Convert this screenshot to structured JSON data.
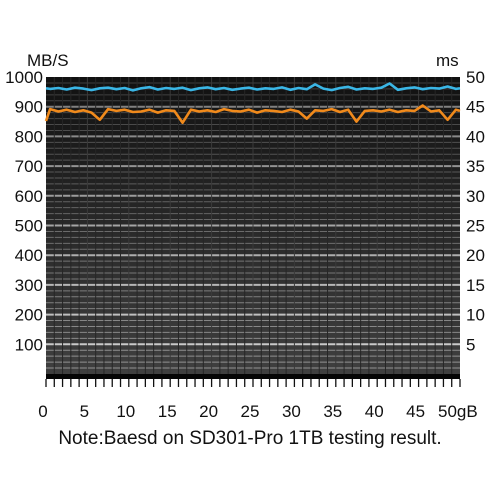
{
  "note": "Note:Baesd on SD301-Pro 1TB testing result.",
  "chart_data": {
    "type": "line",
    "left_unit": "MB/S",
    "right_unit": "ms",
    "x_ticks": [
      "0",
      "5",
      "10",
      "15",
      "20",
      "25",
      "30",
      "35",
      "40",
      "45",
      "50gB"
    ],
    "x_range": [
      0,
      50
    ],
    "y_left_ticks": [
      "100",
      "200",
      "300",
      "400",
      "500",
      "600",
      "700",
      "800",
      "900",
      "1000"
    ],
    "y_left_range": [
      0,
      1000
    ],
    "y_right_ticks": [
      "5",
      "10",
      "15",
      "20",
      "25",
      "30",
      "35",
      "40",
      "45",
      "50"
    ],
    "y_right_range": [
      0,
      50
    ],
    "grid": true,
    "background": "#1c1c1c",
    "series": [
      {
        "axis": "left",
        "color": "#3ab6e6",
        "baseline": 960,
        "x": [
          0,
          0.5,
          1.5,
          2.5,
          3.5,
          4.5,
          5.5,
          6.5,
          7.5,
          8.5,
          9.5,
          10.5,
          11.5,
          12.5,
          13.5,
          14.5,
          15.5,
          16.5,
          17.5,
          18.5,
          19.5,
          20.5,
          21.5,
          22.5,
          23.5,
          24.5,
          25.5,
          26.5,
          27.5,
          28.5,
          29.5,
          30.5,
          31.5,
          32.5,
          33.5,
          34.5,
          35.5,
          36.5,
          37.5,
          38.5,
          39.5,
          40.5,
          41.5,
          42.5,
          43.5,
          44.5,
          45.5,
          46.5,
          47.5,
          48.5,
          49.5,
          50
        ],
        "y": [
          962,
          960,
          963,
          958,
          964,
          961,
          956,
          962,
          964,
          959,
          963,
          955,
          962,
          966,
          958,
          963,
          960,
          964,
          956,
          962,
          965,
          959,
          963,
          957,
          961,
          964,
          958,
          962,
          960,
          965,
          957,
          963,
          959,
          975,
          961,
          956,
          963,
          967,
          958,
          962,
          960,
          964,
          978,
          957,
          962,
          965,
          959,
          963,
          961,
          968,
          960,
          962
        ]
      },
      {
        "axis": "right",
        "color": "#f08a1c",
        "baseline": 44.3,
        "x": [
          0,
          0.5,
          1.5,
          2.5,
          3.5,
          4.5,
          5.5,
          6.5,
          7.5,
          8.5,
          9.5,
          10.5,
          11.5,
          12.5,
          13.5,
          14.5,
          15.5,
          16.5,
          17.5,
          18.5,
          19.5,
          20.5,
          21.5,
          22.5,
          23.5,
          24.5,
          25.5,
          26.5,
          27.5,
          28.5,
          29.5,
          30.5,
          31.5,
          32.5,
          33.5,
          34.5,
          35.5,
          36.5,
          37.5,
          38.5,
          39.5,
          40.5,
          41.5,
          42.5,
          43.5,
          44.5,
          45.5,
          46.5,
          47.5,
          48.5,
          49.5,
          50
        ],
        "y": [
          42.6,
          44.6,
          44.2,
          44.5,
          44.1,
          44.4,
          44.0,
          42.8,
          44.6,
          44.3,
          44.5,
          44.1,
          44.2,
          44.5,
          44.0,
          44.4,
          44.3,
          42.3,
          44.5,
          44.2,
          44.4,
          44.1,
          44.6,
          44.3,
          44.2,
          44.5,
          44.0,
          44.4,
          44.3,
          44.1,
          44.5,
          44.2,
          43.0,
          44.4,
          44.3,
          44.6,
          44.1,
          44.5,
          42.5,
          44.3,
          44.4,
          44.2,
          44.5,
          44.1,
          44.4,
          44.3,
          45.2,
          44.2,
          44.4,
          42.8,
          44.5,
          44.3
        ]
      }
    ]
  }
}
